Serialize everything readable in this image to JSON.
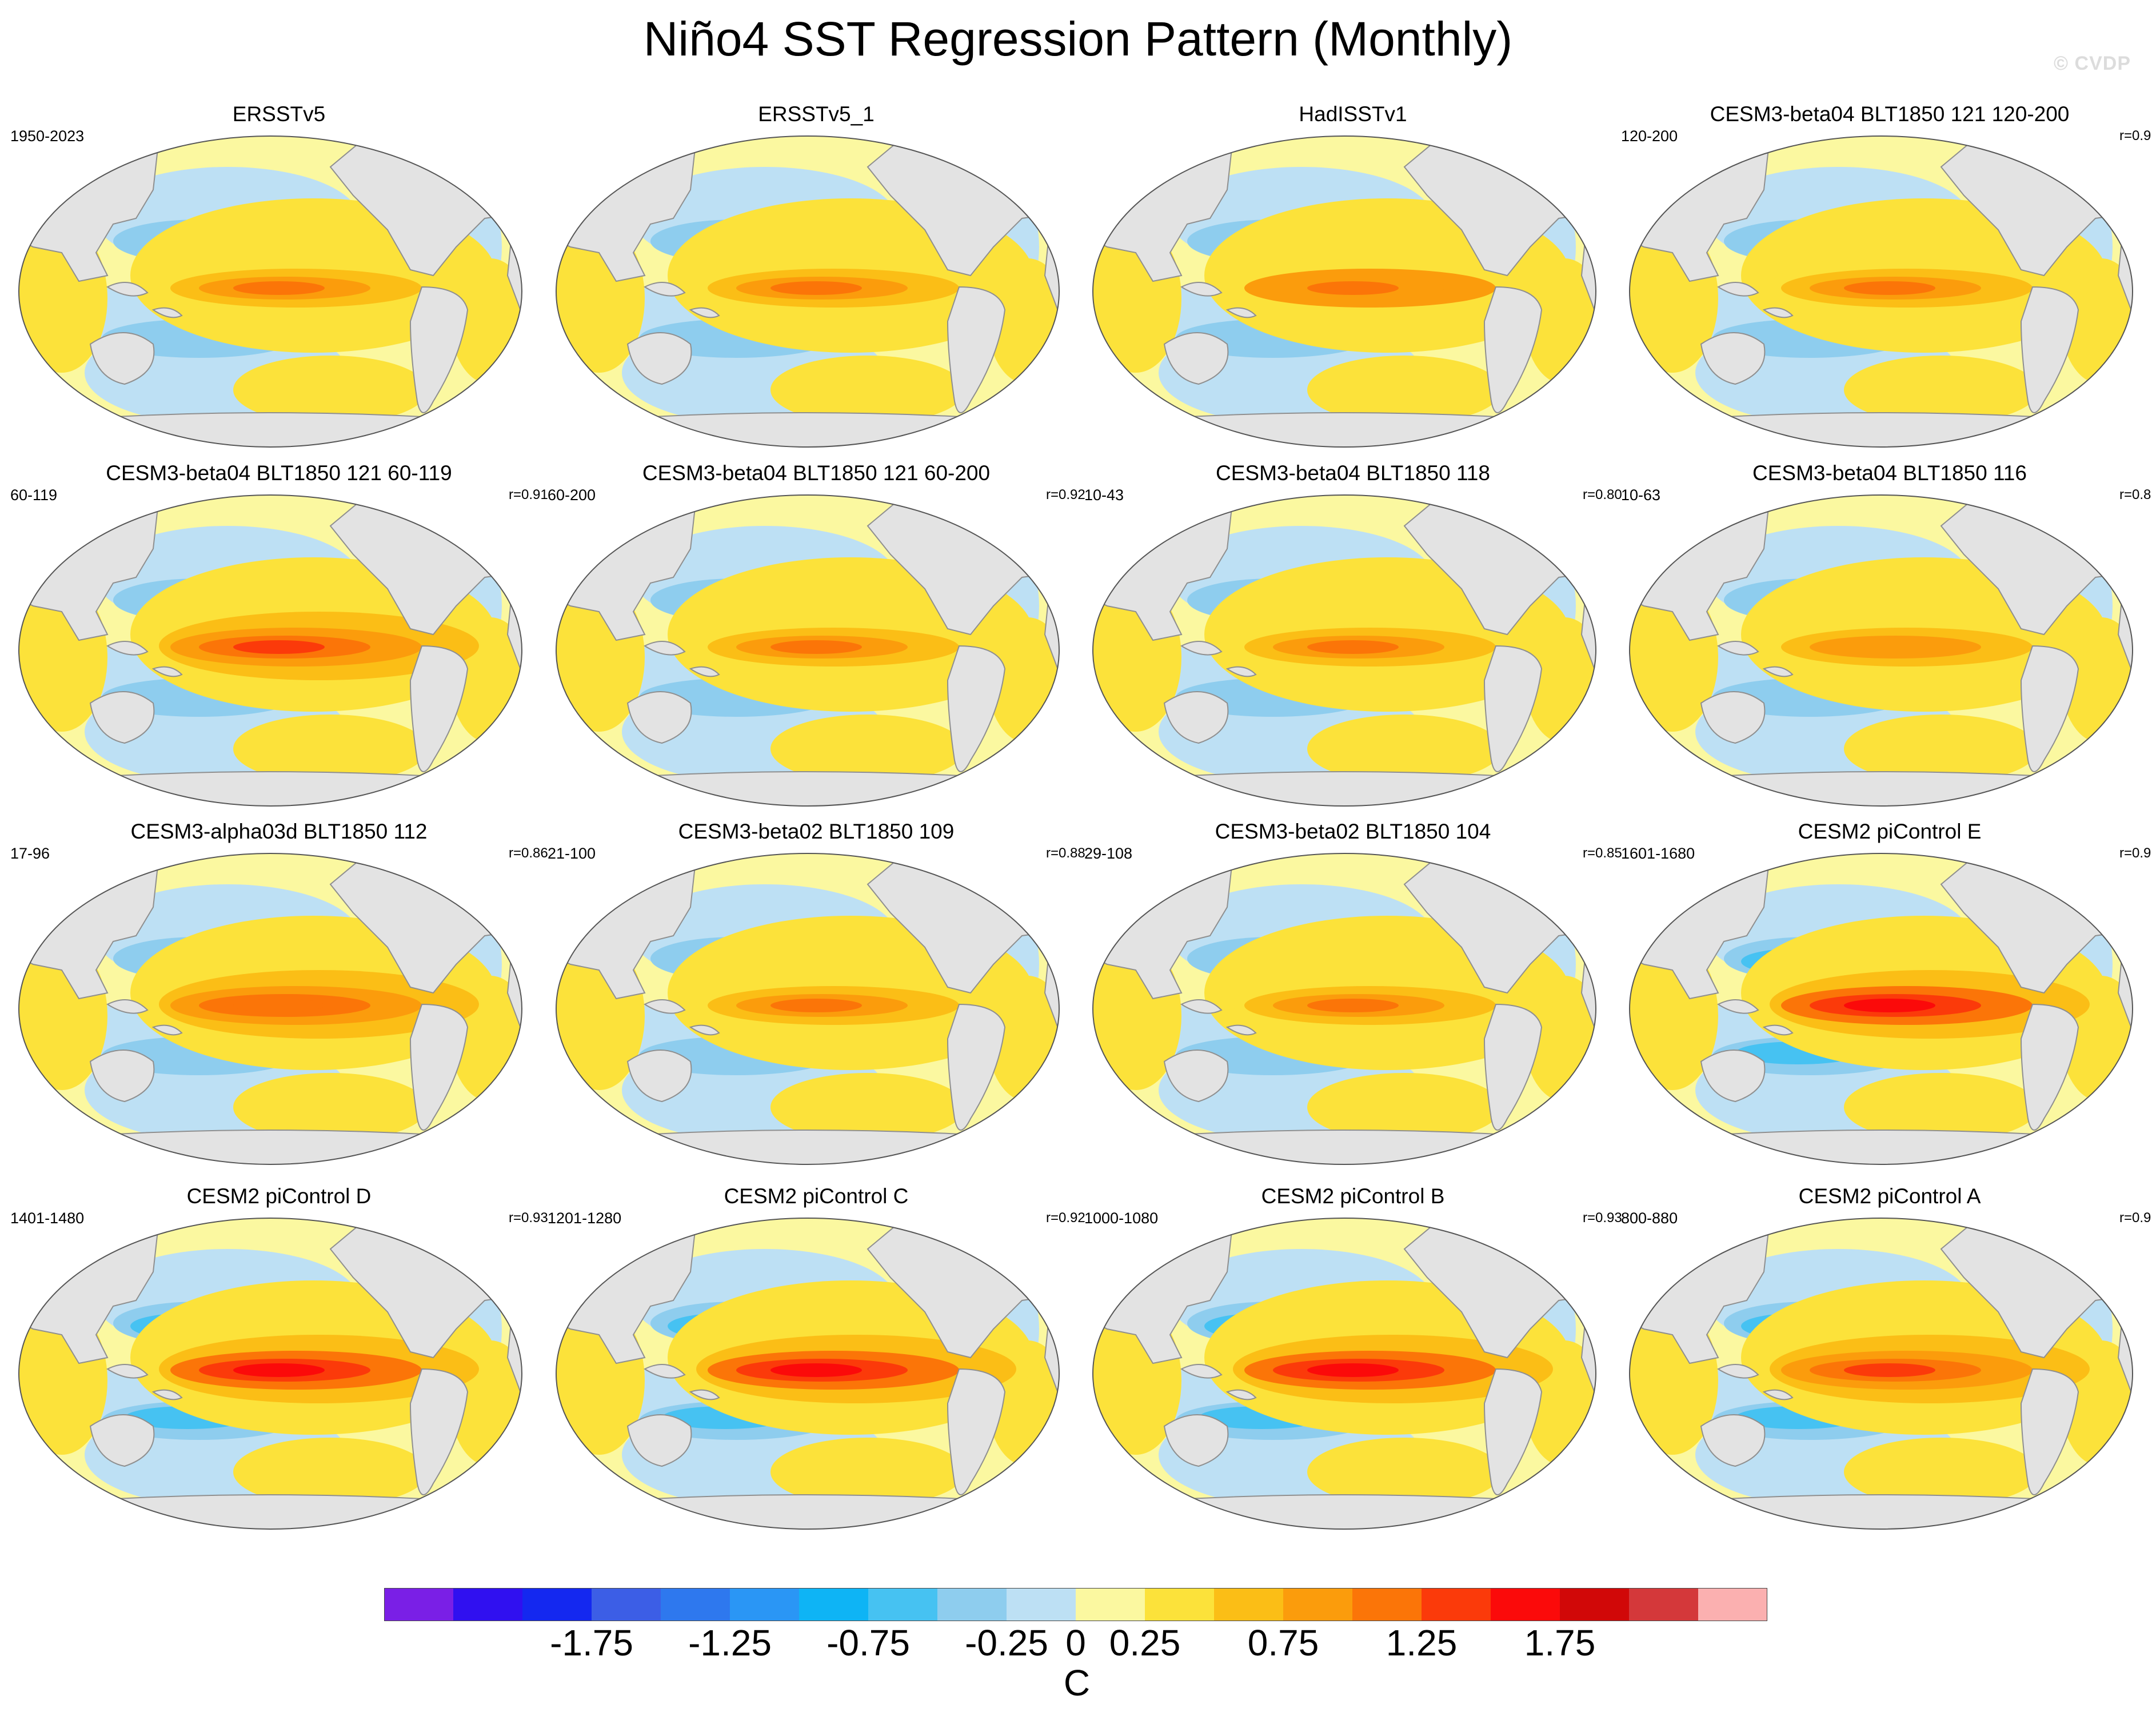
{
  "title": "Niño4 SST Regression Pattern (Monthly)",
  "watermark": "© CVDP",
  "panels": [
    {
      "title": "ERSSTv5",
      "period": "1950-2023",
      "r": "",
      "pattern": 1.05
    },
    {
      "title": "ERSSTv5_1",
      "period": "",
      "r": "",
      "pattern": 1.05
    },
    {
      "title": "HadISSTv1",
      "period": "",
      "r": "",
      "pattern": 1.1
    },
    {
      "title": "CESM3-beta04 BLT1850 121 120-200",
      "period": "120-200",
      "r": "r=0.9",
      "pattern": 0.95
    },
    {
      "title": "CESM3-beta04 BLT1850 121 60-119",
      "period": "60-119",
      "r": "r=0.91",
      "pattern": 1.2
    },
    {
      "title": "CESM3-beta04 BLT1850 121 60-200",
      "period": "60-200",
      "r": "r=0.92",
      "pattern": 1.05
    },
    {
      "title": "CESM3-beta04 BLT1850 118",
      "period": "10-43",
      "r": "r=0.80",
      "pattern": 0.95
    },
    {
      "title": "CESM3-beta04 BLT1850 116",
      "period": "10-63",
      "r": "r=0.8",
      "pattern": 0.85
    },
    {
      "title": "CESM3-alpha03d BLT1850 112",
      "period": "17-96",
      "r": "r=0.86",
      "pattern": 1.15
    },
    {
      "title": "CESM3-beta02 BLT1850 109",
      "period": "21-100",
      "r": "r=0.88",
      "pattern": 1.05
    },
    {
      "title": "CESM3-beta02 BLT1850 104",
      "period": "29-108",
      "r": "r=0.85",
      "pattern": 0.95
    },
    {
      "title": "CESM2 piControl E",
      "period": "1601-1680",
      "r": "r=0.9",
      "pattern": 1.5
    },
    {
      "title": "CESM2 piControl D",
      "period": "1401-1480",
      "r": "r=0.93",
      "pattern": 1.45
    },
    {
      "title": "CESM2 piControl C",
      "period": "1201-1280",
      "r": "r=0.92",
      "pattern": 1.5
    },
    {
      "title": "CESM2 piControl B",
      "period": "1000-1080",
      "r": "r=0.93",
      "pattern": 1.5
    },
    {
      "title": "CESM2 piControl A",
      "period": "800-880",
      "r": "r=0.9",
      "pattern": 1.35
    }
  ],
  "chart_data": {
    "type": "heatmap",
    "projection": "Robinson (Pacific-centred global maps)",
    "variable": "SST regression on Niño4 index",
    "colorbar": {
      "unit": "C",
      "levels": [
        -2.0,
        -1.75,
        -1.5,
        -1.25,
        -1.0,
        -0.75,
        -0.5,
        -0.25,
        0,
        0.25,
        0.5,
        0.75,
        1.0,
        1.25,
        1.5,
        1.75,
        2.0
      ],
      "tick_labels": [
        "-1.75",
        "-1.25",
        "-0.75",
        "-0.25",
        "0",
        "0.25",
        "0.75",
        "1.25",
        "1.75"
      ],
      "tick_values": [
        -1.75,
        -1.25,
        -0.75,
        -0.25,
        0,
        0.25,
        0.75,
        1.25,
        1.75
      ],
      "colors": [
        "#7a1fe6",
        "#3010f0",
        "#1428f0",
        "#3c5ee6",
        "#2e78ee",
        "#2a96f5",
        "#0eb4f5",
        "#46c2f2",
        "#8ecdee",
        "#bde0f4",
        "#fbf8a0",
        "#fce23a",
        "#fbbe16",
        "#fb9c0c",
        "#fb7508",
        "#fb3a0a",
        "#fb0a0a",
        "#d10808",
        "#d4383a",
        "#fbb0b0"
      ]
    },
    "land_color": "#e3e3e3",
    "panel_count": 16
  }
}
